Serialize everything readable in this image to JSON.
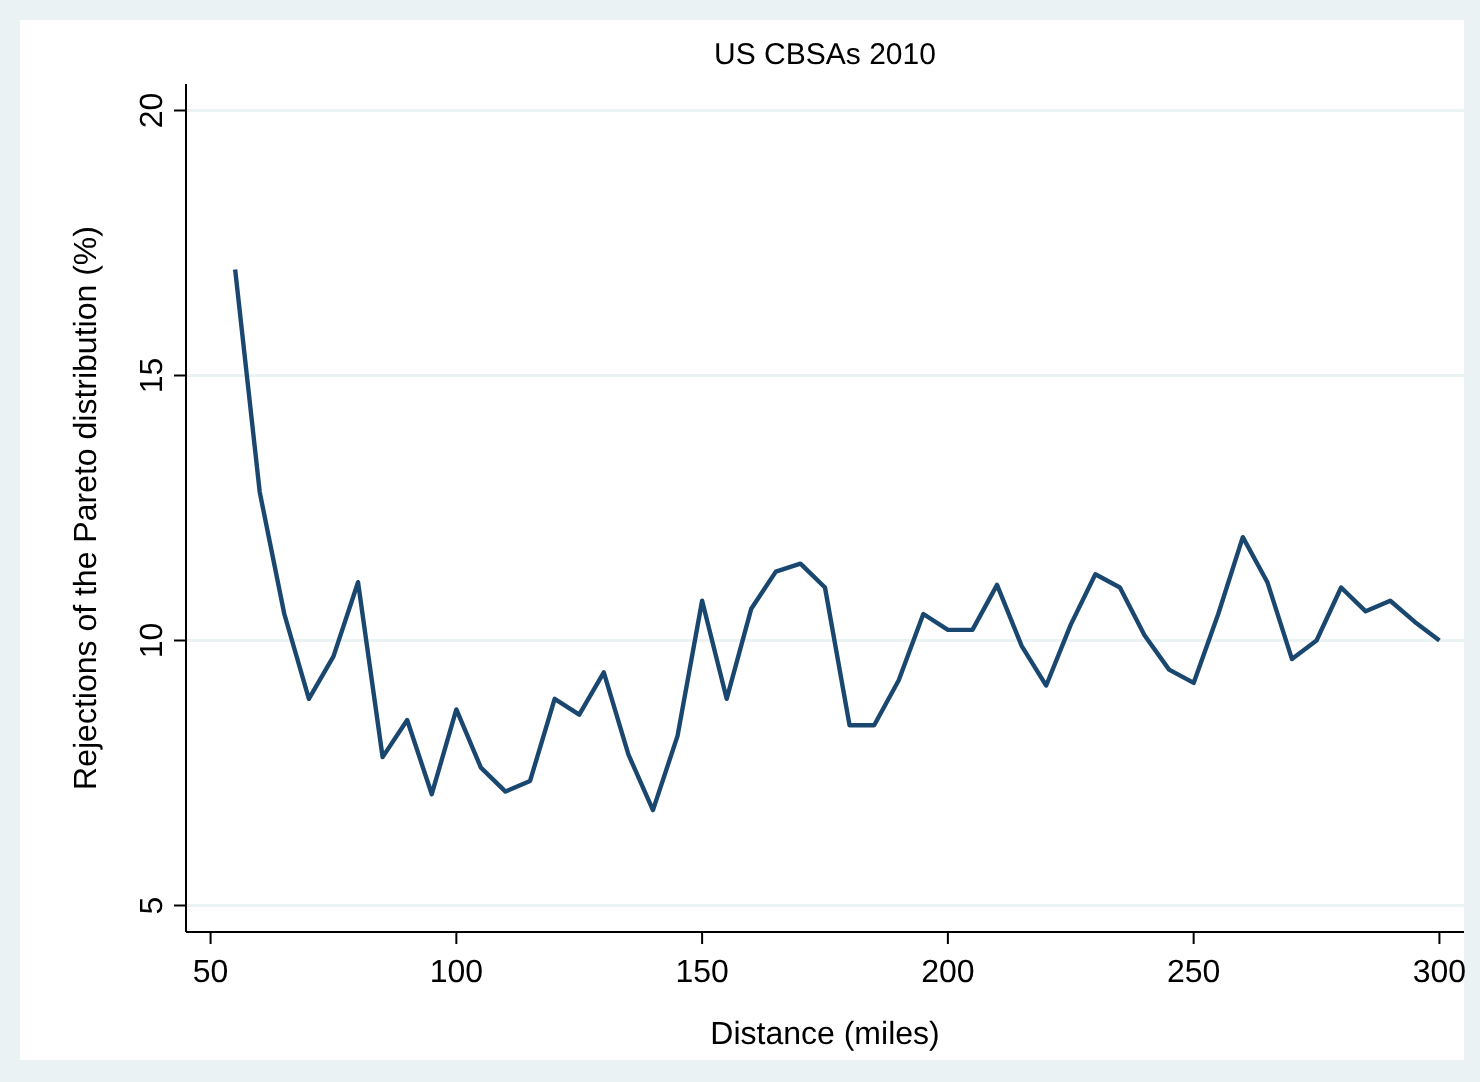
{
  "chart_data": {
    "type": "line",
    "title": "US CBSAs 2010",
    "xlabel": "Distance (miles)",
    "ylabel": "Rejections of the Pareto distribution (%)",
    "x": [
      55,
      60,
      65,
      70,
      75,
      80,
      85,
      90,
      95,
      100,
      105,
      110,
      115,
      120,
      125,
      130,
      135,
      140,
      145,
      150,
      155,
      160,
      165,
      170,
      175,
      180,
      185,
      190,
      195,
      200,
      205,
      210,
      215,
      220,
      225,
      230,
      235,
      240,
      245,
      250,
      255,
      260,
      265,
      270,
      275,
      280,
      285,
      290,
      295,
      300
    ],
    "series": [
      {
        "color": "#1a476f",
        "values": [
          17.0,
          12.8,
          10.5,
          8.9,
          9.7,
          11.1,
          7.8,
          8.5,
          7.1,
          8.7,
          7.6,
          7.15,
          7.35,
          8.9,
          8.6,
          9.4,
          7.85,
          6.8,
          8.2,
          10.75,
          8.9,
          10.6,
          11.3,
          11.45,
          11.0,
          8.4,
          8.4,
          9.25,
          10.5,
          10.2,
          10.2,
          11.05,
          9.9,
          9.15,
          10.3,
          11.25,
          11.0,
          10.1,
          9.45,
          9.2,
          10.5,
          11.95,
          11.1,
          9.65,
          10.0,
          11.0,
          10.55,
          10.75,
          10.35,
          10.0
        ]
      }
    ],
    "xlim": [
      45,
      305
    ],
    "ylim": [
      4.5,
      20.5
    ],
    "xticks": [
      50,
      100,
      150,
      200,
      250,
      300
    ],
    "yticks": [
      5,
      10,
      15,
      20
    ],
    "grid": "y",
    "marker": "none",
    "line_style": "solid"
  }
}
